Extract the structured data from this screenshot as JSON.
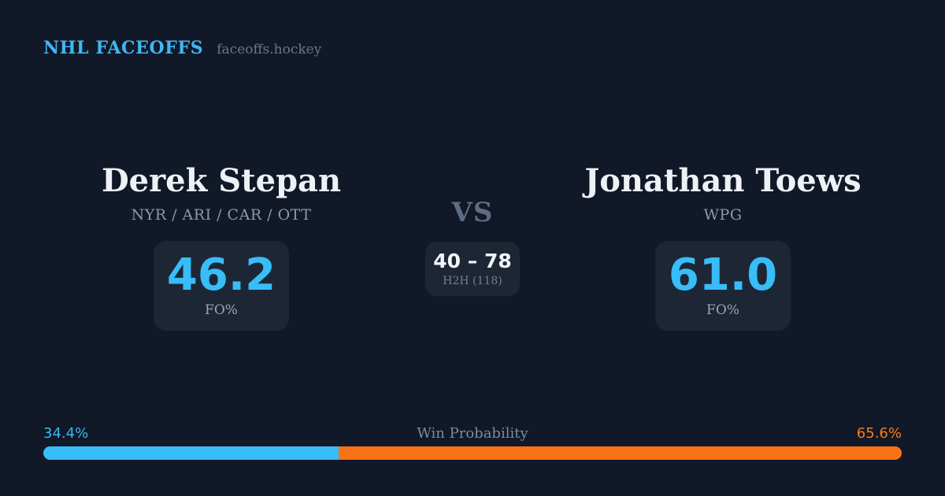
{
  "header": {
    "brand": "NHL FACEOFFS",
    "domain": "faceoffs.hockey"
  },
  "players": [
    {
      "name": "Derek Stepan",
      "teams": "NYR / ARI / CAR / OTT",
      "fo_pct": "46.2"
    },
    {
      "name": "Jonathan Toews",
      "teams": "WPG",
      "fo_pct": "61.0"
    }
  ],
  "labels": {
    "fo_label": "FO%"
  },
  "center": {
    "vs_label": "VS",
    "h2h_score": "40 – 78",
    "h2h_label": "H2H (118)"
  },
  "win_probability": {
    "title": "Win Probability",
    "left_pct": "34.4%",
    "right_pct": "65.6%",
    "left_value": 34.4,
    "right_value": 65.6,
    "left_color": "#38bdf8",
    "right_color": "#f97316"
  },
  "colors": {
    "background": "#111827",
    "card": "#1d2635",
    "accent_blue": "#38bdf8",
    "accent_orange": "#f97316",
    "name_text": "#eef1f6",
    "muted_text": "#8b99ad"
  },
  "chart_data": {
    "type": "bar",
    "title": "Win Probability",
    "categories": [
      "Derek Stepan",
      "Jonathan Toews"
    ],
    "series": [
      {
        "name": "Win Probability %",
        "values": [
          34.4,
          65.6
        ]
      },
      {
        "name": "FO%",
        "values": [
          46.2,
          61.0
        ]
      },
      {
        "name": "H2H faceoff wins (of 118 total)",
        "values": [
          40,
          78
        ]
      }
    ],
    "colors": [
      "#38bdf8",
      "#f97316"
    ],
    "legend_position": "none",
    "xlabel": "",
    "ylabel": "",
    "ylim": [
      0,
      100
    ]
  }
}
